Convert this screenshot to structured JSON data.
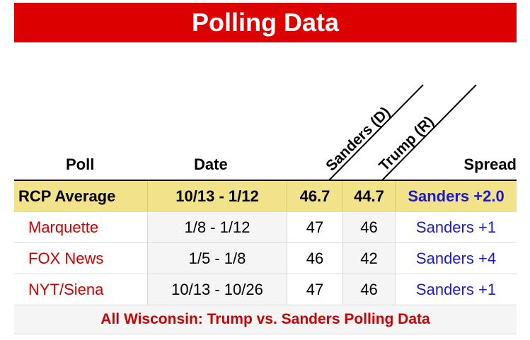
{
  "title": "Polling Data",
  "headers": {
    "poll": "Poll",
    "date": "Date",
    "candidate_d": "Sanders (D)",
    "candidate_r": "Trump (R)",
    "spread": "Spread"
  },
  "average": {
    "poll": "RCP Average",
    "date": "10/13 - 1/12",
    "d": "46.7",
    "r": "44.7",
    "spread": "Sanders +2.0"
  },
  "rows": [
    {
      "poll": "Marquette",
      "date": "1/8 - 1/12",
      "d": "47",
      "r": "46",
      "spread": "Sanders +1"
    },
    {
      "poll": "FOX News",
      "date": "1/5 - 1/8",
      "d": "46",
      "r": "42",
      "spread": "Sanders +4"
    },
    {
      "poll": "NYT/Siena",
      "date": "10/13 - 10/26",
      "d": "47",
      "r": "46",
      "spread": "Sanders +1"
    }
  ],
  "footer_link": "All Wisconsin: Trump vs. Sanders Polling Data",
  "colors": {
    "title_bg": "#dd0000",
    "average_bg": "#f2e289",
    "poll_link": "#cc0000",
    "spread_link": "#1a1acc"
  }
}
